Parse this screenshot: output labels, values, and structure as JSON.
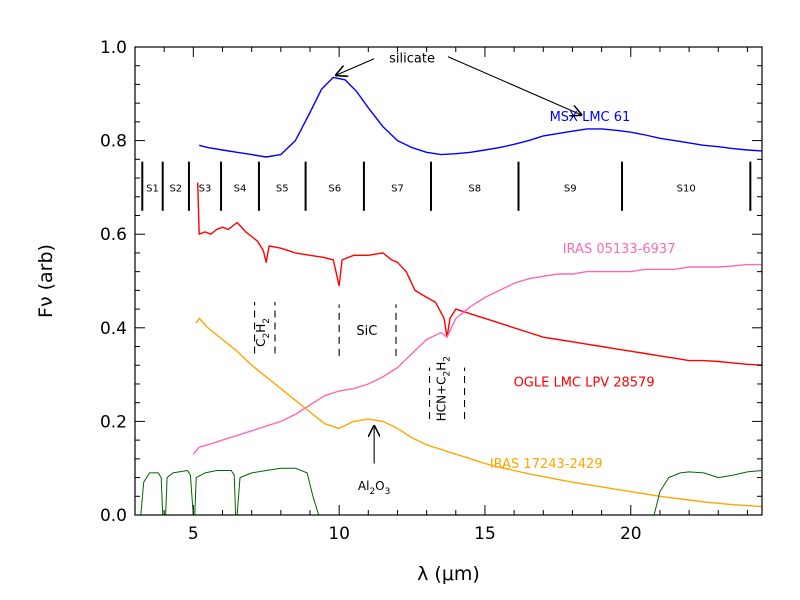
{
  "chart_data": {
    "type": "line",
    "title": "",
    "xlabel": "λ (μm)",
    "ylabel": "Fν (arb)",
    "xlim": [
      3,
      24.5
    ],
    "ylim": [
      0,
      1.0
    ],
    "x_ticks": [
      5,
      10,
      15,
      20
    ],
    "y_ticks": [
      0.0,
      0.2,
      0.4,
      0.6,
      0.8,
      1.0
    ],
    "x_tick_labels": [
      "5",
      "10",
      "15",
      "20"
    ],
    "y_tick_labels": [
      "0.0",
      "0.2",
      "0.4",
      "0.6",
      "0.8",
      "1.0"
    ],
    "grid": false,
    "series": [
      {
        "name": "MSX LMC 61",
        "color": "#0000ff",
        "points": [
          [
            5.2,
            0.79
          ],
          [
            5.5,
            0.785
          ],
          [
            6.0,
            0.78
          ],
          [
            6.5,
            0.775
          ],
          [
            7.0,
            0.77
          ],
          [
            7.5,
            0.765
          ],
          [
            8.0,
            0.77
          ],
          [
            8.5,
            0.8
          ],
          [
            9.0,
            0.86
          ],
          [
            9.4,
            0.91
          ],
          [
            9.8,
            0.935
          ],
          [
            10.2,
            0.93
          ],
          [
            10.6,
            0.905
          ],
          [
            11.0,
            0.87
          ],
          [
            11.5,
            0.83
          ],
          [
            12.0,
            0.8
          ],
          [
            12.5,
            0.785
          ],
          [
            13.0,
            0.775
          ],
          [
            13.5,
            0.77
          ],
          [
            14.0,
            0.772
          ],
          [
            14.5,
            0.775
          ],
          [
            15.0,
            0.78
          ],
          [
            15.5,
            0.785
          ],
          [
            16.0,
            0.792
          ],
          [
            16.5,
            0.8
          ],
          [
            17.0,
            0.81
          ],
          [
            17.5,
            0.815
          ],
          [
            18.0,
            0.82
          ],
          [
            18.5,
            0.825
          ],
          [
            19.0,
            0.825
          ],
          [
            19.5,
            0.822
          ],
          [
            20.0,
            0.818
          ],
          [
            20.5,
            0.812
          ],
          [
            21.0,
            0.805
          ],
          [
            21.5,
            0.8
          ],
          [
            22.0,
            0.795
          ],
          [
            22.5,
            0.79
          ],
          [
            23.0,
            0.787
          ],
          [
            23.5,
            0.783
          ],
          [
            24.0,
            0.78
          ],
          [
            24.5,
            0.778
          ]
        ]
      },
      {
        "name": "OGLE LMC LPV 28579",
        "color": "#ff0000",
        "points": [
          [
            5.15,
            0.71
          ],
          [
            5.2,
            0.6
          ],
          [
            5.4,
            0.605
          ],
          [
            5.6,
            0.6
          ],
          [
            5.8,
            0.61
          ],
          [
            6.0,
            0.615
          ],
          [
            6.2,
            0.61
          ],
          [
            6.5,
            0.625
          ],
          [
            6.8,
            0.605
          ],
          [
            7.0,
            0.595
          ],
          [
            7.2,
            0.585
          ],
          [
            7.4,
            0.565
          ],
          [
            7.5,
            0.54
          ],
          [
            7.6,
            0.575
          ],
          [
            8.0,
            0.57
          ],
          [
            8.5,
            0.56
          ],
          [
            9.0,
            0.555
          ],
          [
            9.5,
            0.55
          ],
          [
            9.8,
            0.545
          ],
          [
            10.0,
            0.49
          ],
          [
            10.1,
            0.545
          ],
          [
            10.5,
            0.555
          ],
          [
            11.0,
            0.555
          ],
          [
            11.5,
            0.56
          ],
          [
            11.8,
            0.545
          ],
          [
            12.0,
            0.54
          ],
          [
            12.3,
            0.52
          ],
          [
            12.6,
            0.48
          ],
          [
            13.0,
            0.465
          ],
          [
            13.3,
            0.455
          ],
          [
            13.6,
            0.42
          ],
          [
            13.7,
            0.38
          ],
          [
            13.8,
            0.42
          ],
          [
            14.0,
            0.44
          ],
          [
            14.5,
            0.43
          ],
          [
            15.0,
            0.42
          ],
          [
            15.5,
            0.41
          ],
          [
            16.0,
            0.4
          ],
          [
            16.5,
            0.39
          ],
          [
            17.0,
            0.38
          ],
          [
            17.5,
            0.375
          ],
          [
            18.0,
            0.37
          ],
          [
            18.5,
            0.365
          ],
          [
            19.0,
            0.36
          ],
          [
            19.5,
            0.355
          ],
          [
            20.0,
            0.35
          ],
          [
            20.5,
            0.345
          ],
          [
            21.0,
            0.34
          ],
          [
            21.5,
            0.335
          ],
          [
            22.0,
            0.33
          ],
          [
            22.5,
            0.33
          ],
          [
            23.0,
            0.328
          ],
          [
            23.5,
            0.325
          ],
          [
            24.0,
            0.322
          ],
          [
            24.5,
            0.32
          ]
        ]
      },
      {
        "name": "IRAS 05133-6937",
        "color": "#ff69b4",
        "points": [
          [
            5.0,
            0.13
          ],
          [
            5.2,
            0.145
          ],
          [
            5.5,
            0.15
          ],
          [
            6.0,
            0.16
          ],
          [
            6.5,
            0.17
          ],
          [
            7.0,
            0.18
          ],
          [
            7.5,
            0.19
          ],
          [
            8.0,
            0.2
          ],
          [
            8.5,
            0.215
          ],
          [
            9.0,
            0.235
          ],
          [
            9.5,
            0.255
          ],
          [
            10.0,
            0.265
          ],
          [
            10.5,
            0.27
          ],
          [
            11.0,
            0.28
          ],
          [
            11.5,
            0.295
          ],
          [
            12.0,
            0.315
          ],
          [
            12.5,
            0.345
          ],
          [
            13.0,
            0.375
          ],
          [
            13.5,
            0.39
          ],
          [
            13.7,
            0.38
          ],
          [
            14.0,
            0.42
          ],
          [
            14.5,
            0.445
          ],
          [
            15.0,
            0.465
          ],
          [
            15.5,
            0.48
          ],
          [
            16.0,
            0.495
          ],
          [
            16.5,
            0.505
          ],
          [
            17.0,
            0.51
          ],
          [
            17.5,
            0.515
          ],
          [
            18.0,
            0.515
          ],
          [
            18.5,
            0.52
          ],
          [
            19.0,
            0.52
          ],
          [
            19.5,
            0.52
          ],
          [
            20.0,
            0.52
          ],
          [
            20.5,
            0.525
          ],
          [
            21.0,
            0.525
          ],
          [
            21.5,
            0.525
          ],
          [
            22.0,
            0.53
          ],
          [
            22.5,
            0.53
          ],
          [
            23.0,
            0.53
          ],
          [
            23.5,
            0.532
          ],
          [
            24.0,
            0.535
          ],
          [
            24.5,
            0.535
          ]
        ]
      },
      {
        "name": "IRAS 17243-2429",
        "color": "#ffa500",
        "points": [
          [
            5.1,
            0.41
          ],
          [
            5.2,
            0.42
          ],
          [
            5.5,
            0.4
          ],
          [
            6.0,
            0.375
          ],
          [
            6.5,
            0.35
          ],
          [
            7.0,
            0.32
          ],
          [
            7.5,
            0.295
          ],
          [
            8.0,
            0.27
          ],
          [
            8.5,
            0.245
          ],
          [
            9.0,
            0.22
          ],
          [
            9.5,
            0.195
          ],
          [
            10.0,
            0.185
          ],
          [
            10.5,
            0.2
          ],
          [
            11.0,
            0.205
          ],
          [
            11.5,
            0.2
          ],
          [
            12.0,
            0.185
          ],
          [
            12.5,
            0.165
          ],
          [
            13.0,
            0.15
          ],
          [
            13.5,
            0.14
          ],
          [
            14.0,
            0.13
          ],
          [
            14.5,
            0.12
          ],
          [
            15.0,
            0.11
          ],
          [
            15.5,
            0.102
          ],
          [
            16.0,
            0.095
          ],
          [
            16.5,
            0.088
          ],
          [
            17.0,
            0.082
          ],
          [
            17.5,
            0.076
          ],
          [
            18.0,
            0.07
          ],
          [
            18.5,
            0.065
          ],
          [
            19.0,
            0.06
          ],
          [
            19.5,
            0.055
          ],
          [
            20.0,
            0.05
          ],
          [
            20.5,
            0.045
          ],
          [
            21.0,
            0.04
          ],
          [
            21.5,
            0.036
          ],
          [
            22.0,
            0.032
          ],
          [
            22.5,
            0.028
          ],
          [
            23.0,
            0.025
          ],
          [
            23.5,
            0.022
          ],
          [
            24.0,
            0.02
          ],
          [
            24.5,
            0.018
          ]
        ]
      },
      {
        "name": "",
        "color": "#006400",
        "points": [
          [
            3.0,
            0.0
          ],
          [
            3.2,
            0.0
          ],
          [
            3.3,
            0.07
          ],
          [
            3.5,
            0.09
          ],
          [
            3.8,
            0.09
          ],
          [
            3.9,
            0.08
          ],
          [
            3.95,
            0.0
          ],
          [
            4.05,
            0.0
          ],
          [
            4.1,
            0.08
          ],
          [
            4.3,
            0.09
          ],
          [
            4.8,
            0.095
          ],
          [
            4.9,
            0.085
          ],
          [
            5.0,
            0.0
          ],
          [
            5.05,
            0.0
          ],
          [
            5.1,
            0.08
          ],
          [
            5.4,
            0.09
          ],
          [
            5.8,
            0.095
          ],
          [
            6.3,
            0.095
          ],
          [
            6.4,
            0.085
          ],
          [
            6.45,
            0.0
          ],
          [
            6.5,
            0.0
          ],
          [
            6.6,
            0.08
          ],
          [
            7.0,
            0.09
          ],
          [
            7.5,
            0.095
          ],
          [
            8.0,
            0.1
          ],
          [
            8.5,
            0.1
          ],
          [
            8.9,
            0.09
          ],
          [
            9.1,
            0.04
          ],
          [
            9.3,
            0.0
          ],
          [
            20.8,
            0.0
          ],
          [
            21.0,
            0.05
          ],
          [
            21.3,
            0.08
          ],
          [
            21.7,
            0.09
          ],
          [
            22.0,
            0.092
          ],
          [
            22.5,
            0.09
          ],
          [
            23.0,
            0.08
          ],
          [
            23.5,
            0.085
          ],
          [
            24.0,
            0.092
          ],
          [
            24.5,
            0.095
          ]
        ]
      }
    ],
    "series_labels": [
      {
        "text": "MSX LMC 61",
        "color": "#0000ff",
        "x": 18.6,
        "y": 0.842
      },
      {
        "text": "IRAS 05133-6937",
        "color": "#ff69b4",
        "x": 19.6,
        "y": 0.56
      },
      {
        "text": "OGLE LMC LPV 28579",
        "color": "#ff0000",
        "x": 18.4,
        "y": 0.275
      },
      {
        "text": "IRAS 17243-2429",
        "color": "#ffa500",
        "x": 17.1,
        "y": 0.1
      }
    ],
    "segments": {
      "labels": [
        "S1",
        "S2",
        "S3",
        "S4",
        "S5",
        "S6",
        "S7",
        "S8",
        "S9",
        "S10"
      ],
      "boundaries": [
        3.25,
        3.95,
        4.85,
        5.95,
        7.25,
        8.85,
        10.85,
        13.15,
        16.15,
        19.7,
        24.1
      ],
      "y_low": 0.65,
      "y_high": 0.755,
      "label_y": 0.7
    },
    "annotations": {
      "silicate": {
        "text": "silicate",
        "x": 12.5,
        "y": 0.975,
        "arrow_targets": [
          [
            9.9,
            0.94
          ],
          [
            18.3,
            0.855
          ]
        ]
      },
      "al2o3": {
        "text": "Al",
        "sub": "2",
        "text2": "O",
        "sub2": "3",
        "x": 11.2,
        "y": 0.075,
        "arrow_from_y": 0.11,
        "arrow_to_y": 0.19
      },
      "sic": {
        "text": "SiC",
        "x": 10.95,
        "y": 0.395,
        "bracket_x": [
          10.0,
          11.95
        ],
        "y_low": 0.34,
        "y_high": 0.45
      },
      "c2h2": {
        "text": "C",
        "sub": "2",
        "text2": "H",
        "sub2": "2",
        "x": 7.45,
        "y": 0.39,
        "bracket_x": [
          7.1,
          7.8
        ],
        "y_low": 0.345,
        "y_high": 0.455
      },
      "hcn": {
        "text": "HCN+C",
        "sub": "2",
        "text2": "H",
        "sub2": "2",
        "x": 13.65,
        "y": 0.27,
        "bracket_x": [
          13.1,
          14.3
        ],
        "y_low": 0.205,
        "y_high": 0.315
      }
    }
  }
}
